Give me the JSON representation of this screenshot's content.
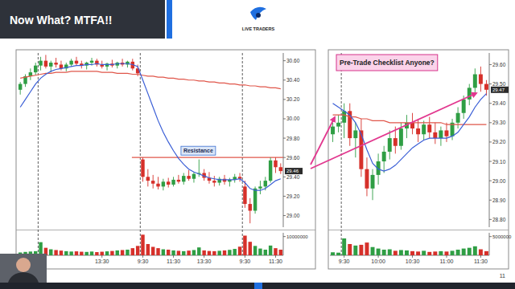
{
  "slide": {
    "title": "Now What? MTFA!!",
    "logo": "LIVE TRADERS",
    "page": "11"
  },
  "chart_data": [
    {
      "type": "candlestick",
      "categories": [
        null,
        null,
        null,
        null,
        null,
        null,
        null,
        null,
        null,
        null,
        null,
        null,
        null,
        null,
        null,
        null,
        "13:30",
        null,
        null,
        null,
        null,
        null,
        null,
        null,
        "9:30",
        null,
        null,
        null,
        null,
        null,
        "11:30",
        null,
        null,
        null,
        null,
        null,
        "13:30",
        null,
        null,
        null,
        null,
        null,
        null,
        null,
        "9:30",
        null,
        null,
        null,
        null,
        null,
        "11:30",
        null
      ],
      "open": [
        30.3,
        30.36,
        30.44,
        30.48,
        30.55,
        30.6,
        30.54,
        30.58,
        30.56,
        30.52,
        30.56,
        30.6,
        30.57,
        30.55,
        30.58,
        30.6,
        30.56,
        30.54,
        30.57,
        30.55,
        30.58,
        30.56,
        30.59,
        30.52,
        29.58,
        29.4,
        29.36,
        29.33,
        29.3,
        29.35,
        29.32,
        29.37,
        29.35,
        29.41,
        29.38,
        29.43,
        29.44,
        29.39,
        29.36,
        29.34,
        29.38,
        29.35,
        29.37,
        29.4,
        29.3,
        29.12,
        29.05,
        29.28,
        29.3,
        29.36,
        29.57,
        29.5
      ],
      "high": [
        30.38,
        30.46,
        30.52,
        30.58,
        30.64,
        30.66,
        30.6,
        30.63,
        30.6,
        30.58,
        30.62,
        30.64,
        30.6,
        30.59,
        30.63,
        30.62,
        30.6,
        30.58,
        30.61,
        30.59,
        30.62,
        30.6,
        30.62,
        30.56,
        29.6,
        29.48,
        29.42,
        29.4,
        29.38,
        29.39,
        29.4,
        29.42,
        29.44,
        29.47,
        29.45,
        29.58,
        29.48,
        29.45,
        29.41,
        29.4,
        29.42,
        29.39,
        29.43,
        29.44,
        29.36,
        29.18,
        29.3,
        29.36,
        29.4,
        29.6,
        29.6,
        29.54
      ],
      "low": [
        30.25,
        30.33,
        30.4,
        30.45,
        30.5,
        30.52,
        30.48,
        30.53,
        30.5,
        30.49,
        30.54,
        30.55,
        30.52,
        30.51,
        30.55,
        30.54,
        30.52,
        30.5,
        30.53,
        30.52,
        30.54,
        30.53,
        30.5,
        30.44,
        29.35,
        29.3,
        29.28,
        29.27,
        29.26,
        29.29,
        29.3,
        29.33,
        29.32,
        29.36,
        29.34,
        29.4,
        29.36,
        29.33,
        29.3,
        29.31,
        29.32,
        29.3,
        29.34,
        29.35,
        29.08,
        28.92,
        29.02,
        29.22,
        29.26,
        29.34,
        29.44,
        29.43
      ],
      "close": [
        30.36,
        30.44,
        30.48,
        30.55,
        30.6,
        30.54,
        30.58,
        30.56,
        30.52,
        30.56,
        30.6,
        30.57,
        30.55,
        30.58,
        30.6,
        30.56,
        30.54,
        30.57,
        30.55,
        30.58,
        30.56,
        30.59,
        30.52,
        30.47,
        29.4,
        29.36,
        29.33,
        29.3,
        29.35,
        29.32,
        29.37,
        29.35,
        29.41,
        29.38,
        29.43,
        29.44,
        29.39,
        29.36,
        29.34,
        29.38,
        29.35,
        29.37,
        29.4,
        29.38,
        29.12,
        29.05,
        29.28,
        29.3,
        29.36,
        29.57,
        29.5,
        29.46
      ],
      "series": [
        {
          "type": "line",
          "color": "#e0564a",
          "values": [
            30.42,
            30.43,
            30.44,
            30.45,
            30.46,
            30.47,
            30.47,
            30.48,
            30.48,
            30.48,
            30.49,
            30.49,
            30.49,
            30.49,
            30.49,
            30.49,
            30.48,
            30.48,
            30.48,
            30.47,
            30.47,
            30.47,
            30.46,
            30.46,
            30.45,
            30.44,
            30.44,
            30.43,
            30.43,
            30.42,
            30.42,
            30.41,
            30.41,
            30.4,
            30.4,
            30.39,
            30.39,
            30.38,
            30.38,
            30.37,
            30.37,
            30.36,
            30.36,
            30.35,
            30.35,
            30.34,
            30.34,
            30.33,
            30.33,
            30.32,
            30.32,
            30.31
          ]
        },
        {
          "type": "line",
          "color": "#3b5fd6",
          "values": [
            30.12,
            30.2,
            30.28,
            30.36,
            30.42,
            30.46,
            30.49,
            30.51,
            30.52,
            30.53,
            30.54,
            30.55,
            30.55,
            30.56,
            30.56,
            30.57,
            30.56,
            30.56,
            30.56,
            30.57,
            30.57,
            30.57,
            30.56,
            30.54,
            30.4,
            30.26,
            30.12,
            29.98,
            29.86,
            29.76,
            29.67,
            29.59,
            29.53,
            29.48,
            29.45,
            29.43,
            29.41,
            29.39,
            29.38,
            29.37,
            29.37,
            29.37,
            29.37,
            29.38,
            29.34,
            29.28,
            29.26,
            29.26,
            29.28,
            29.32,
            29.36,
            29.38
          ]
        }
      ],
      "ylim": [
        28.88,
        30.68
      ],
      "yticks": [
        {
          "value": 30.6,
          "label": "30.60"
        },
        {
          "value": 30.4,
          "label": "30.40"
        },
        {
          "value": 30.2,
          "label": "30.20"
        },
        {
          "value": 30,
          "label": "30.00"
        },
        {
          "value": 29.8,
          "label": "29.80"
        },
        {
          "value": 29.6,
          "label": "29.60"
        },
        {
          "value": 29.4,
          "label": "29.40"
        },
        {
          "value": 29.2,
          "label": "29.20"
        },
        {
          "value": 29,
          "label": "29.00"
        }
      ],
      "last_price": 29.46,
      "session_starts": [
        4,
        24,
        44
      ],
      "annotations": [
        {
          "text": "Resistance",
          "y": 29.6
        }
      ],
      "volume": {
        "values": [
          1500000,
          1800000,
          2000000,
          2200000,
          7000000,
          4000000,
          3200000,
          2800000,
          2500000,
          2200000,
          2000000,
          2100000,
          1900000,
          1800000,
          2000000,
          1700000,
          1900000,
          2100000,
          2300000,
          2600000,
          2800000,
          3000000,
          3800000,
          5000000,
          11000000,
          6000000,
          4500000,
          3800000,
          3200000,
          3000000,
          2600000,
          2400000,
          2200000,
          2500000,
          2800000,
          4200000,
          2600000,
          2300000,
          2200000,
          2400000,
          2600000,
          2900000,
          3400000,
          4600000,
          10500000,
          7200000,
          5000000,
          3600000,
          3000000,
          5200000,
          3800000,
          3000000
        ],
        "ylim": [
          0,
          12000000
        ],
        "yticks": [
          10000000
        ]
      }
    },
    {
      "type": "candlestick",
      "title": "Pre-Trade Checklist Anyone?",
      "categories": [
        null,
        null,
        "9:30",
        null,
        null,
        null,
        null,
        null,
        "10:00",
        null,
        null,
        null,
        null,
        null,
        "10:30",
        null,
        null,
        null,
        null,
        null,
        "11:00",
        null,
        null,
        null,
        null,
        null,
        "11:30",
        null
      ],
      "open": [
        29.24,
        29.28,
        29.3,
        29.36,
        29.22,
        29.26,
        29.06,
        28.96,
        29.03,
        29.1,
        29.15,
        29.22,
        29.18,
        29.27,
        29.3,
        29.27,
        29.24,
        29.29,
        29.25,
        29.22,
        29.26,
        29.23,
        29.3,
        29.35,
        29.42,
        29.48,
        29.55,
        29.5
      ],
      "high": [
        29.3,
        29.34,
        29.4,
        29.4,
        29.3,
        29.32,
        29.12,
        29.06,
        29.14,
        29.18,
        29.26,
        29.28,
        29.3,
        29.34,
        29.35,
        29.32,
        29.31,
        29.33,
        29.3,
        29.28,
        29.3,
        29.32,
        29.38,
        29.44,
        29.5,
        29.58,
        29.59,
        29.52
      ],
      "low": [
        29.2,
        29.25,
        29.22,
        29.18,
        29.12,
        29.02,
        28.92,
        28.9,
        28.98,
        29.04,
        29.11,
        29.14,
        29.16,
        29.22,
        29.24,
        29.2,
        29.21,
        29.22,
        29.19,
        29.18,
        29.2,
        29.21,
        29.27,
        29.32,
        29.39,
        29.45,
        29.46,
        29.44
      ],
      "close": [
        29.28,
        29.3,
        29.36,
        29.22,
        29.26,
        29.06,
        28.96,
        29.03,
        29.1,
        29.15,
        29.22,
        29.18,
        29.27,
        29.3,
        29.27,
        29.24,
        29.29,
        29.25,
        29.22,
        29.26,
        29.23,
        29.3,
        29.35,
        29.42,
        29.48,
        29.55,
        29.5,
        29.47
      ],
      "series": [
        {
          "type": "line",
          "color": "#e0564a",
          "values": [
            29.34,
            29.34,
            29.34,
            29.33,
            29.33,
            29.32,
            29.32,
            29.31,
            29.31,
            29.31,
            29.3,
            29.3,
            29.3,
            29.3,
            29.3,
            29.3,
            29.3,
            29.3,
            29.3,
            29.3,
            29.29,
            29.29,
            29.29,
            29.29,
            29.29,
            29.29,
            29.29,
            29.29
          ]
        },
        {
          "type": "line",
          "color": "#3b5fd6",
          "values": [
            29.4,
            29.38,
            29.36,
            29.34,
            29.3,
            29.24,
            29.16,
            29.09,
            29.06,
            29.05,
            29.06,
            29.08,
            29.11,
            29.14,
            29.17,
            29.19,
            29.21,
            29.22,
            29.22,
            29.22,
            29.22,
            29.23,
            29.25,
            29.29,
            29.33,
            29.38,
            29.42,
            29.45
          ]
        }
      ],
      "ylim": [
        28.76,
        29.66
      ],
      "yticks": [
        {
          "value": 29.6,
          "label": "29.60"
        },
        {
          "value": 29.5,
          "label": "29.50"
        },
        {
          "value": 29.4,
          "label": "29.40"
        },
        {
          "value": 29.3,
          "label": "29.30"
        },
        {
          "value": 29.2,
          "label": "29.20"
        },
        {
          "value": 29.1,
          "label": "29.10"
        },
        {
          "value": 29,
          "label": "29.00"
        },
        {
          "value": 28.9,
          "label": "28.90"
        },
        {
          "value": 28.8,
          "label": "28.80"
        }
      ],
      "last_price": 29.47,
      "session_starts": [
        2
      ],
      "volume": {
        "values": [
          800000,
          700000,
          4500000,
          3000000,
          2600000,
          2800000,
          3400000,
          2200000,
          1800000,
          1500000,
          1600000,
          1200000,
          1400000,
          1300000,
          1100000,
          1000000,
          1200000,
          900000,
          1000000,
          1100000,
          1000000,
          1200000,
          1500000,
          1800000,
          2000000,
          2400000,
          1600000,
          1100000
        ],
        "ylim": [
          0,
          6000000
        ],
        "yticks": [
          5000000
        ]
      }
    }
  ]
}
